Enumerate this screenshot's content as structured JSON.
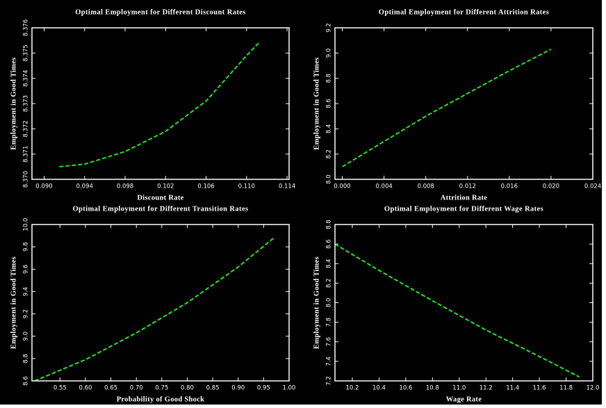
{
  "chart_data": [
    {
      "type": "line",
      "title": "Optimal Employment for Different Discount Rates",
      "xlabel": "Discount Rate",
      "ylabel": "Employment in Good Times",
      "x": [
        0.0915,
        0.094,
        0.098,
        0.102,
        0.106,
        0.11,
        0.1112
      ],
      "values": [
        8.3705,
        8.3706,
        8.3711,
        8.3719,
        8.3731,
        8.3749,
        8.3754
      ],
      "color": "#22e622",
      "xlim": [
        0.0888,
        0.1142
      ],
      "xticks": [
        {
          "value": 0.09,
          "label": "0.090"
        },
        0.094,
        0.098,
        0.102,
        0.106,
        {
          "value": 0.11,
          "label": "0.110"
        },
        0.114
      ],
      "ylim": [
        8.37,
        8.376
      ],
      "yticks": [
        {
          "value": 8.37,
          "label": "8.370"
        },
        8.371,
        8.372,
        8.373,
        8.374,
        8.375,
        8.376
      ]
    },
    {
      "type": "line",
      "title": "Optimal Employment for Different Attrition Rates",
      "xlabel": "Attrition Rate",
      "ylabel": "Employment in Good Times",
      "x": [
        0,
        0.004,
        0.008,
        0.012,
        0.016,
        0.02
      ],
      "values": [
        8.1,
        8.3,
        8.5,
        8.68,
        8.86,
        9.03
      ],
      "color": "#22e622",
      "xlim": [
        -0.0007,
        0.024
      ],
      "xticks": [
        {
          "value": 0,
          "label": "0.000"
        },
        0.004,
        0.008,
        0.012,
        0.016,
        {
          "value": 0.02,
          "label": "0.020"
        },
        0.024
      ],
      "ylim": [
        8.0,
        9.2
      ],
      "yticks": [
        {
          "value": 8.0,
          "label": "8.0"
        },
        8.2,
        8.4,
        8.6,
        8.8,
        {
          "value": 9.0,
          "label": "9.0"
        },
        9.2
      ]
    },
    {
      "type": "line",
      "title": "Optimal Employment for Different Transition Rates",
      "xlabel": "Probability of Good Shock",
      "ylabel": "Employment in Good Times",
      "x": [
        0.5,
        0.6,
        0.7,
        0.8,
        0.9,
        0.97
      ],
      "values": [
        8.6,
        8.79,
        9.03,
        9.3,
        9.62,
        9.88
      ],
      "color": "#22e622",
      "xlim": [
        0.495,
        1.0
      ],
      "xticks": [
        0.55,
        {
          "value": 0.6,
          "label": "0.60"
        },
        0.65,
        {
          "value": 0.7,
          "label": "0.70"
        },
        0.75,
        {
          "value": 0.8,
          "label": "0.80"
        },
        0.85,
        {
          "value": 0.9,
          "label": "0.90"
        },
        0.95,
        {
          "value": 1.0,
          "label": "1.00"
        }
      ],
      "ylim": [
        8.6,
        10.0
      ],
      "yticks": [
        8.6,
        8.8,
        {
          "value": 9.0,
          "label": "9.0"
        },
        9.2,
        9.4,
        9.6,
        9.8,
        {
          "value": 10.0,
          "label": "10.0"
        }
      ]
    },
    {
      "type": "line",
      "title": "Optimal Employment for Different Wage Rates",
      "xlabel": "Wage Rate",
      "ylabel": "Employment in Good Times",
      "x": [
        10.07,
        10.4,
        10.8,
        11.2,
        11.6,
        11.9
      ],
      "values": [
        8.6,
        8.33,
        8.02,
        7.72,
        7.45,
        7.24
      ],
      "color": "#22e622",
      "xlim": [
        10.07,
        12.0
      ],
      "xticks": [
        10.2,
        10.4,
        10.6,
        10.8,
        {
          "value": 11.0,
          "label": "11.0"
        },
        11.2,
        11.4,
        11.6,
        11.8,
        {
          "value": 12.0,
          "label": "12.0"
        }
      ],
      "ylim": [
        7.2,
        8.8
      ],
      "yticks": [
        7.2,
        7.4,
        7.6,
        7.8,
        {
          "value": 8.0,
          "label": "8.0"
        },
        8.2,
        8.4,
        8.6,
        8.8
      ]
    }
  ]
}
